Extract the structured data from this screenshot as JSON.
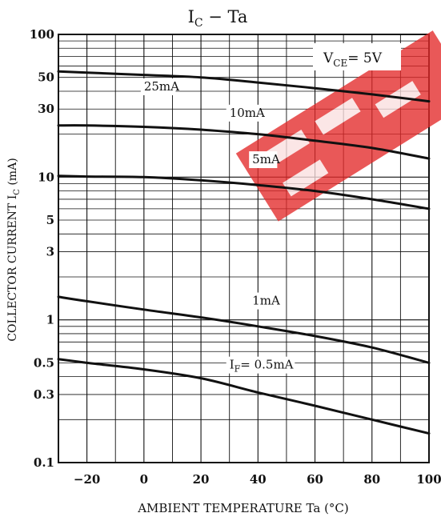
{
  "chart_data": {
    "type": "line",
    "title_main": "I",
    "title_sub": "C",
    "title_rest": " − Ta",
    "xlabel": "AMBIENT TEMPERATURE   Ta   (°C)",
    "ylabel_main": "COLLECTOR CURRENT  I",
    "ylabel_sub": "C",
    "ylabel_unit": "(mA)",
    "condition_main": "V",
    "condition_sub": "CE",
    "condition_rest": "= 5V",
    "x_scale": "linear",
    "y_scale": "log",
    "xlim": [
      -30,
      100
    ],
    "ylim": [
      0.1,
      100
    ],
    "grid": true,
    "x_ticks": [
      -20,
      0,
      20,
      40,
      60,
      80,
      100
    ],
    "x_tick_labels": [
      "−20",
      "0",
      "20",
      "40",
      "60",
      "80",
      "100"
    ],
    "y_tick_values": [
      0.1,
      0.3,
      0.5,
      1,
      3,
      5,
      10,
      30,
      50,
      100
    ],
    "y_tick_labels": [
      "0.1",
      "0.3",
      "0.5",
      "1",
      "3",
      "5",
      "10",
      "30",
      "50",
      "100"
    ],
    "series": [
      {
        "name": "25mA",
        "label_main": "25mA",
        "label_sub": "",
        "label_rest": "",
        "label_anchor": [
          0,
          40.5
        ],
        "points": [
          [
            -30,
            55
          ],
          [
            -20,
            54
          ],
          [
            0,
            52
          ],
          [
            20,
            50
          ],
          [
            40,
            46
          ],
          [
            60,
            42
          ],
          [
            80,
            38
          ],
          [
            100,
            34
          ]
        ]
      },
      {
        "name": "10mA",
        "label_main": "10mA",
        "label_sub": "",
        "label_rest": "",
        "label_anchor": [
          30,
          26.5
        ],
        "points": [
          [
            -30,
            23
          ],
          [
            -20,
            23
          ],
          [
            0,
            22.5
          ],
          [
            20,
            21.5
          ],
          [
            40,
            20
          ],
          [
            60,
            18
          ],
          [
            80,
            16
          ],
          [
            100,
            13.5
          ]
        ]
      },
      {
        "name": "5mA",
        "label_main": "5mA",
        "label_sub": "",
        "label_rest": "",
        "label_anchor": [
          38,
          12.5
        ],
        "points": [
          [
            -30,
            10.2
          ],
          [
            -20,
            10.1
          ],
          [
            0,
            10
          ],
          [
            20,
            9.5
          ],
          [
            40,
            8.8
          ],
          [
            60,
            8
          ],
          [
            80,
            7
          ],
          [
            100,
            6
          ]
        ]
      },
      {
        "name": "1mA",
        "label_main": "1mA",
        "label_sub": "",
        "label_rest": "",
        "label_anchor": [
          38,
          1.28
        ],
        "points": [
          [
            -30,
            1.45
          ],
          [
            -20,
            1.35
          ],
          [
            0,
            1.18
          ],
          [
            20,
            1.04
          ],
          [
            40,
            0.9
          ],
          [
            60,
            0.77
          ],
          [
            80,
            0.64
          ],
          [
            100,
            0.5
          ]
        ]
      },
      {
        "name": "IF=0.5mA",
        "label_main": "I",
        "label_sub": "F",
        "label_rest": "= 0.5mA",
        "label_anchor": [
          30,
          0.455
        ],
        "points": [
          [
            -30,
            0.53
          ],
          [
            -20,
            0.5
          ],
          [
            0,
            0.45
          ],
          [
            20,
            0.39
          ],
          [
            40,
            0.31
          ],
          [
            60,
            0.25
          ],
          [
            80,
            0.2
          ],
          [
            100,
            0.16
          ]
        ]
      }
    ],
    "colors": {
      "line": "#111111",
      "grid": "#111111",
      "background": "#ffffff",
      "watermark": "#e32a2a"
    }
  }
}
